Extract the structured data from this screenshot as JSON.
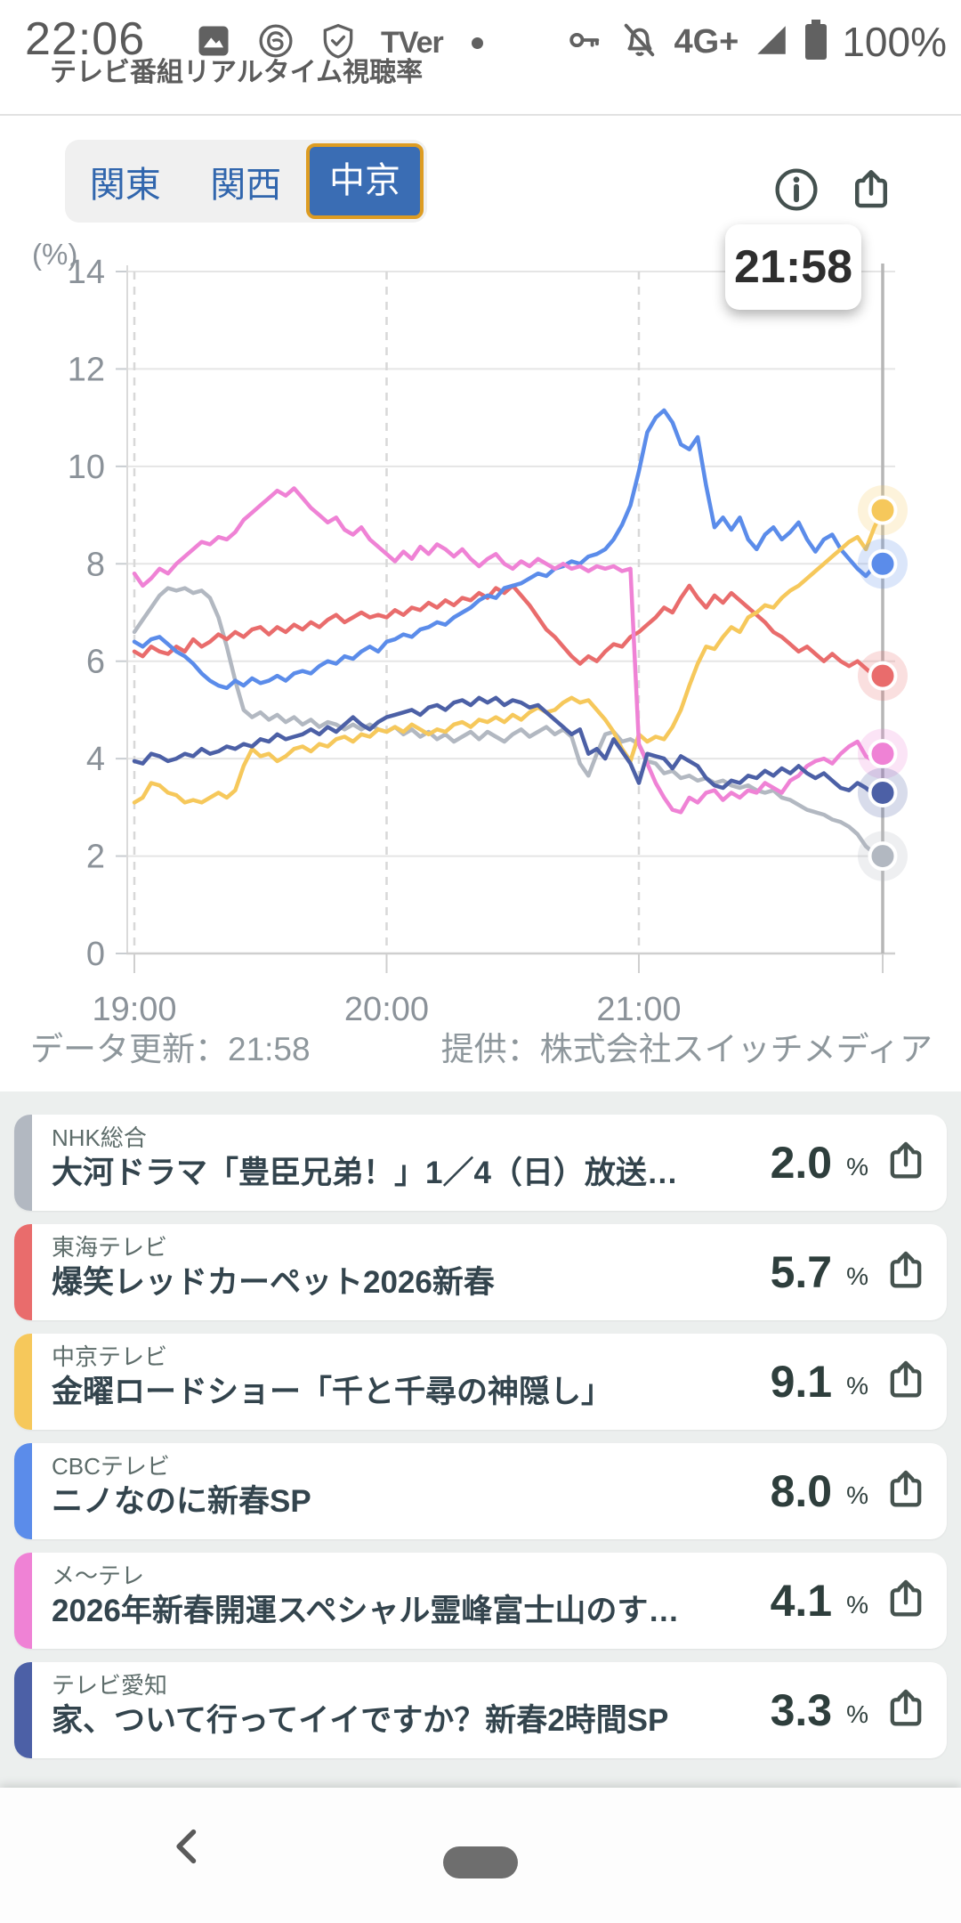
{
  "status_bar": {
    "time": "22:06",
    "network": "4G+",
    "battery_percent": "100%",
    "tver_label": "TVer"
  },
  "header": {
    "app_title": "テレビ番組リアルタイム視聴率"
  },
  "tabs": [
    {
      "label": "関東",
      "selected": false
    },
    {
      "label": "関西",
      "selected": false
    },
    {
      "label": "中京",
      "selected": true
    }
  ],
  "tooltip": {
    "time": "21:58"
  },
  "chart_footer": {
    "updated": "データ更新：21:58",
    "provider": "提供：株式会社スイッチメディア"
  },
  "percent_unit": "%",
  "chart_data": {
    "type": "line",
    "unit_label": "(%)",
    "ylim": [
      0,
      14
    ],
    "yticks": [
      0,
      2,
      4,
      6,
      8,
      10,
      12,
      14
    ],
    "t_max": 178,
    "cursor_t": 178,
    "cursor_time": "21:58",
    "grid": true,
    "xticks": [
      {
        "label": "19:00",
        "t": 0
      },
      {
        "label": "20:00",
        "t": 60
      },
      {
        "label": "21:00",
        "t": 120
      }
    ],
    "series": [
      {
        "name": "NHK総合",
        "color": "#b2b8c1",
        "t_step": 2,
        "values": [
          6.6,
          6.85,
          7.1,
          7.35,
          7.5,
          7.45,
          7.5,
          7.4,
          7.45,
          7.3,
          6.9,
          6.3,
          5.6,
          5.0,
          4.85,
          4.95,
          4.8,
          4.9,
          4.75,
          4.85,
          4.7,
          4.8,
          4.65,
          4.75,
          4.7,
          4.6,
          4.7,
          4.6,
          4.7,
          4.6,
          4.55,
          4.65,
          4.5,
          4.6,
          4.45,
          4.55,
          4.4,
          4.5,
          4.35,
          4.45,
          4.55,
          4.4,
          4.55,
          4.45,
          4.35,
          4.5,
          4.6,
          4.45,
          4.55,
          4.65,
          4.5,
          4.6,
          4.45,
          3.9,
          3.65,
          4.1,
          4.5,
          4.55,
          4.35,
          4.4,
          4.3,
          3.95,
          3.9,
          3.7,
          3.75,
          3.6,
          3.65,
          3.55,
          3.6,
          3.5,
          3.55,
          3.45,
          3.4,
          3.45,
          3.35,
          3.3,
          3.35,
          3.2,
          3.15,
          3.05,
          2.95,
          2.9,
          2.85,
          2.75,
          2.7,
          2.6,
          2.45,
          2.2,
          2.05,
          2.0
        ]
      },
      {
        "name": "東海テレビ",
        "color": "#e96c6c",
        "t_step": 2,
        "values": [
          6.2,
          6.1,
          6.3,
          6.2,
          6.15,
          6.3,
          6.2,
          6.45,
          6.3,
          6.4,
          6.55,
          6.45,
          6.6,
          6.5,
          6.65,
          6.7,
          6.55,
          6.7,
          6.6,
          6.75,
          6.65,
          6.8,
          6.7,
          6.85,
          6.95,
          6.8,
          6.9,
          7.0,
          6.9,
          6.95,
          6.9,
          7.05,
          6.95,
          7.1,
          7.05,
          7.2,
          7.1,
          7.25,
          7.15,
          7.3,
          7.25,
          7.4,
          7.3,
          7.5,
          7.4,
          7.55,
          7.35,
          7.15,
          6.9,
          6.65,
          6.5,
          6.3,
          6.1,
          5.95,
          6.1,
          6.0,
          6.2,
          6.35,
          6.3,
          6.5,
          6.6,
          6.75,
          6.9,
          7.1,
          7.0,
          7.3,
          7.55,
          7.3,
          7.1,
          7.35,
          7.2,
          7.4,
          7.25,
          7.1,
          6.95,
          6.8,
          6.6,
          6.5,
          6.35,
          6.2,
          6.3,
          6.15,
          6.0,
          6.15,
          6.0,
          5.9,
          6.0,
          5.85,
          5.7,
          5.7
        ]
      },
      {
        "name": "CBCテレビ",
        "color": "#5b8cea",
        "t_step": 2,
        "values": [
          6.4,
          6.3,
          6.45,
          6.5,
          6.35,
          6.2,
          6.1,
          5.95,
          5.75,
          5.6,
          5.5,
          5.45,
          5.6,
          5.5,
          5.65,
          5.55,
          5.6,
          5.7,
          5.6,
          5.75,
          5.8,
          5.75,
          5.9,
          6.0,
          5.95,
          6.1,
          6.05,
          6.2,
          6.3,
          6.2,
          6.4,
          6.45,
          6.55,
          6.5,
          6.65,
          6.7,
          6.8,
          6.75,
          6.9,
          7.0,
          7.1,
          7.25,
          7.35,
          7.3,
          7.5,
          7.55,
          7.6,
          7.7,
          7.8,
          7.75,
          7.9,
          7.95,
          8.05,
          8.0,
          8.15,
          8.2,
          8.3,
          8.5,
          8.8,
          9.2,
          9.9,
          10.7,
          11.0,
          11.15,
          10.9,
          10.45,
          10.35,
          10.6,
          9.6,
          8.75,
          8.95,
          8.7,
          8.95,
          8.5,
          8.3,
          8.6,
          8.75,
          8.5,
          8.65,
          8.85,
          8.5,
          8.25,
          8.5,
          8.6,
          8.3,
          8.1,
          7.9,
          7.75,
          7.95,
          8.0
        ]
      },
      {
        "name": "中京テレビ",
        "color": "#f6c85b",
        "t_step": 2,
        "values": [
          3.1,
          3.2,
          3.5,
          3.45,
          3.3,
          3.25,
          3.1,
          3.15,
          3.1,
          3.2,
          3.3,
          3.2,
          3.35,
          3.85,
          4.2,
          4.05,
          4.1,
          3.95,
          4.05,
          4.2,
          4.25,
          4.15,
          4.3,
          4.25,
          4.4,
          4.45,
          4.35,
          4.5,
          4.45,
          4.6,
          4.55,
          4.65,
          4.55,
          4.7,
          4.6,
          4.5,
          4.6,
          4.55,
          4.7,
          4.75,
          4.65,
          4.8,
          4.75,
          4.85,
          4.75,
          4.9,
          4.8,
          4.95,
          5.05,
          4.95,
          5.0,
          5.15,
          5.25,
          5.15,
          5.2,
          5.0,
          4.8,
          4.55,
          4.2,
          3.95,
          4.5,
          4.35,
          4.45,
          4.4,
          4.65,
          5.0,
          5.5,
          5.95,
          6.3,
          6.25,
          6.5,
          6.7,
          6.6,
          6.9,
          7.0,
          7.15,
          7.1,
          7.3,
          7.45,
          7.55,
          7.7,
          7.85,
          8.0,
          8.15,
          8.3,
          8.45,
          8.55,
          8.3,
          8.75,
          9.1
        ]
      },
      {
        "name": "メ〜テレ",
        "color": "#ef82d5",
        "t_step": 2,
        "values": [
          7.8,
          7.55,
          7.7,
          7.9,
          7.8,
          8.0,
          8.15,
          8.3,
          8.45,
          8.4,
          8.55,
          8.5,
          8.65,
          8.9,
          9.05,
          9.2,
          9.35,
          9.5,
          9.4,
          9.55,
          9.35,
          9.15,
          9.0,
          8.85,
          8.95,
          8.7,
          8.6,
          8.75,
          8.5,
          8.35,
          8.2,
          8.05,
          8.25,
          8.1,
          8.35,
          8.2,
          8.4,
          8.3,
          8.15,
          8.3,
          8.1,
          7.95,
          8.1,
          8.2,
          8.0,
          7.9,
          8.05,
          7.95,
          8.1,
          8.0,
          7.9,
          8.0,
          7.9,
          7.95,
          7.85,
          7.95,
          7.9,
          7.95,
          7.85,
          7.9,
          4.3,
          3.9,
          3.5,
          3.2,
          2.95,
          2.9,
          3.2,
          3.1,
          3.3,
          3.35,
          3.15,
          3.3,
          3.2,
          3.35,
          3.3,
          3.5,
          3.4,
          3.3,
          3.55,
          3.65,
          3.85,
          3.95,
          4.0,
          3.9,
          4.1,
          4.25,
          4.35,
          4.05,
          3.95,
          4.1
        ]
      },
      {
        "name": "テレビ愛知",
        "color": "#4c60a6",
        "t_step": 2,
        "values": [
          3.95,
          3.9,
          4.1,
          4.05,
          3.95,
          4.0,
          4.1,
          4.05,
          4.2,
          4.1,
          4.15,
          4.25,
          4.2,
          4.3,
          4.25,
          4.4,
          4.35,
          4.5,
          4.4,
          4.45,
          4.5,
          4.6,
          4.5,
          4.65,
          4.55,
          4.7,
          4.85,
          4.7,
          4.6,
          4.75,
          4.85,
          4.9,
          4.95,
          5.0,
          4.9,
          5.05,
          5.1,
          5.0,
          5.15,
          5.2,
          5.1,
          5.25,
          5.15,
          5.25,
          5.1,
          5.2,
          5.15,
          5.05,
          5.1,
          4.95,
          4.8,
          4.65,
          4.5,
          4.6,
          4.1,
          4.2,
          4.0,
          4.4,
          4.15,
          3.9,
          3.5,
          4.1,
          4.05,
          4.0,
          3.8,
          4.05,
          3.95,
          3.85,
          3.6,
          3.45,
          3.4,
          3.55,
          3.5,
          3.65,
          3.6,
          3.75,
          3.65,
          3.8,
          3.7,
          3.85,
          3.7,
          3.6,
          3.7,
          3.55,
          3.4,
          3.35,
          3.5,
          3.4,
          3.25,
          3.3
        ]
      }
    ]
  },
  "programs": [
    {
      "station": "NHK総合",
      "title": "大河ドラマ「豊臣兄弟！」1／4（日）放送…",
      "rating": "2.0",
      "color": "#b2b8c1"
    },
    {
      "station": "東海テレビ",
      "title": "爆笑レッドカーペット2026新春",
      "rating": "5.7",
      "color": "#e96c6c"
    },
    {
      "station": "中京テレビ",
      "title": "金曜ロードショー「千と千尋の神隠し」",
      "rating": "9.1",
      "color": "#f6c85b"
    },
    {
      "station": "CBCテレビ",
      "title": "ニノなのに新春SP",
      "rating": "8.0",
      "color": "#5b8cea"
    },
    {
      "station": "メ〜テレ",
      "title": "2026年新春開運スペシャル霊峰富士山のす…",
      "rating": "4.1",
      "color": "#ef82d5"
    },
    {
      "station": "テレビ愛知",
      "title": "家、ついて行ってイイですか？新春2時間SP",
      "rating": "3.3",
      "color": "#4c60a6"
    }
  ]
}
